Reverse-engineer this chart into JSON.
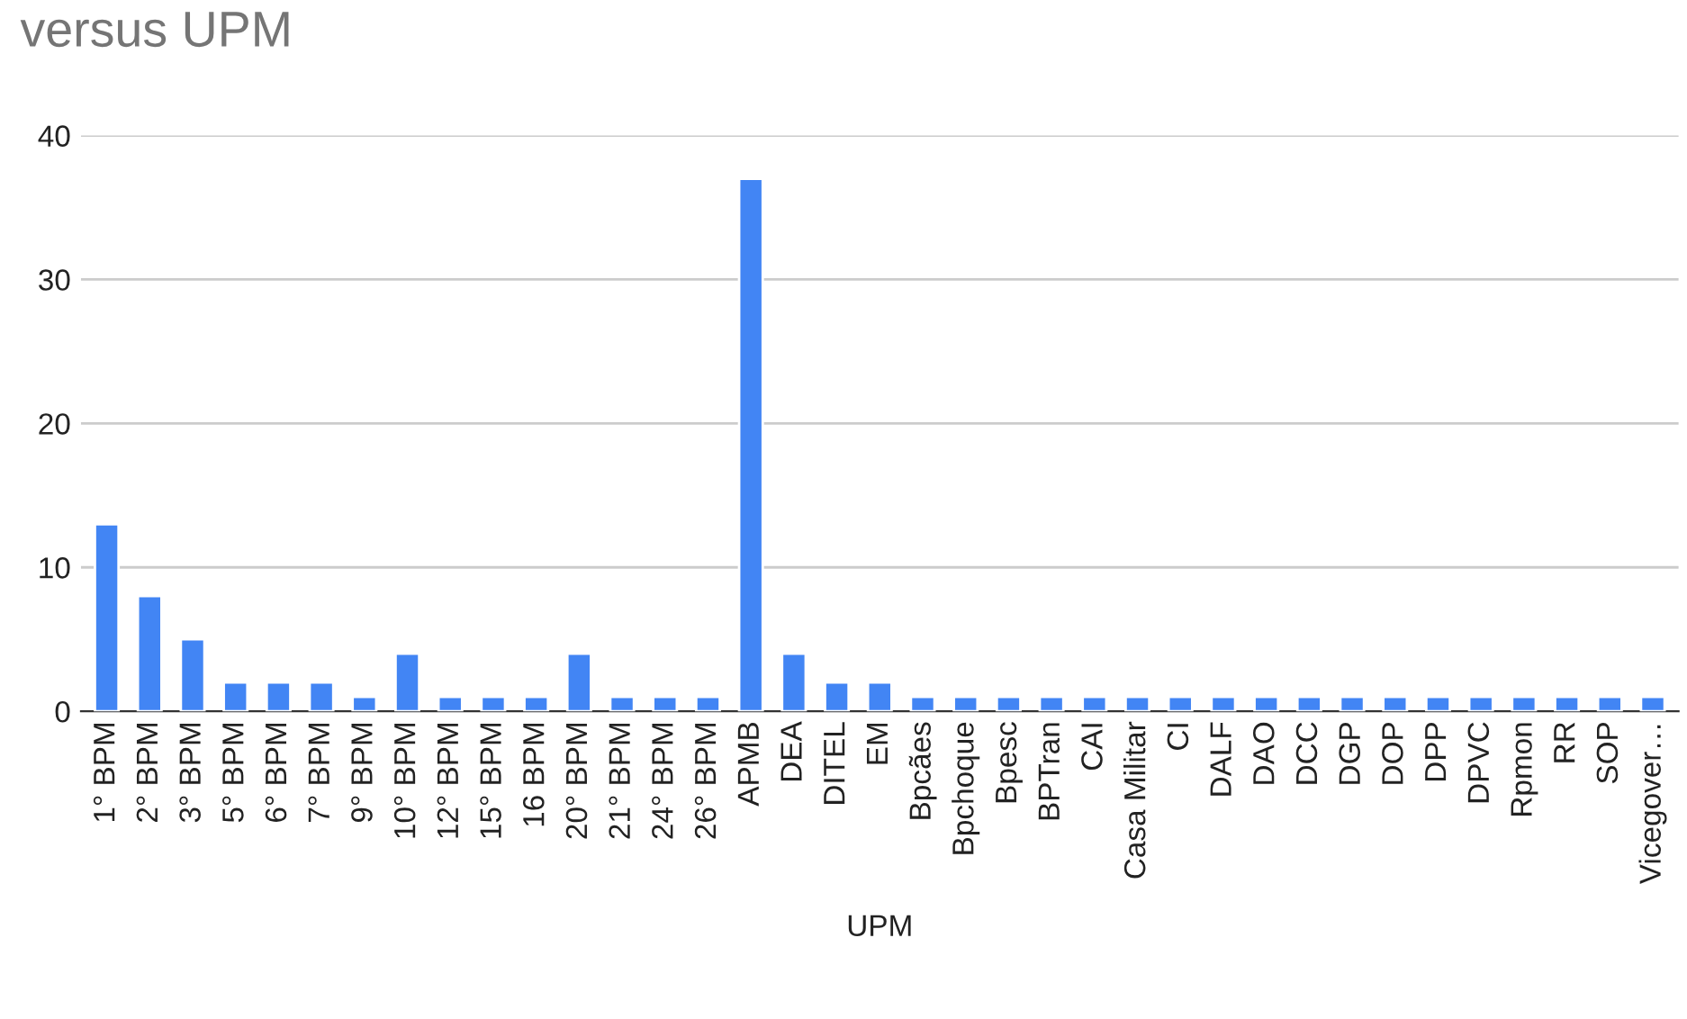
{
  "chart_data": {
    "type": "bar",
    "title": "versus UPM",
    "xlabel": "UPM",
    "categories": [
      "1° BPM",
      "2° BPM",
      "3° BPM",
      "5° BPM",
      "6° BPM",
      "7° BPM",
      "9° BPM",
      "10° BPM",
      "12° BPM",
      "15° BPM",
      "16 BPM",
      "20° BPM",
      "21° BPM",
      "24° BPM",
      "26° BPM",
      "APMB",
      "DEA",
      "DITEL",
      "EM",
      "Bpcães",
      "Bpchoque",
      "Bpesc",
      "BPTran",
      "CAI",
      "Casa Militar",
      "CI",
      "DALF",
      "DAO",
      "DCC",
      "DGP",
      "DOP",
      "DPP",
      "DPVC",
      "Rpmon",
      "RR",
      "SOP",
      "Vicegover…"
    ],
    "values": [
      13,
      8,
      5,
      2,
      2,
      2,
      1,
      4,
      1,
      1,
      1,
      4,
      1,
      1,
      1,
      37,
      4,
      2,
      2,
      1,
      1,
      1,
      1,
      1,
      1,
      1,
      1,
      1,
      1,
      1,
      1,
      1,
      1,
      1,
      1,
      1,
      1
    ],
    "color": "#4285f4",
    "ylim": [
      0,
      40
    ],
    "yticks": [
      0,
      10,
      20,
      30,
      40
    ],
    "grid": "y",
    "legend": false
  }
}
